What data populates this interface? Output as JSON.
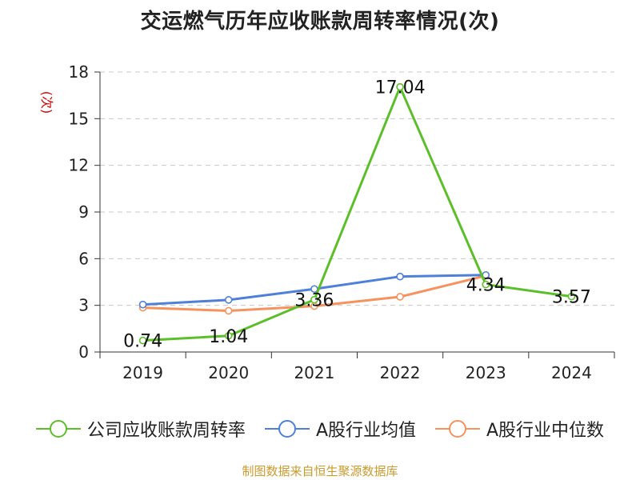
{
  "chart_data": {
    "type": "line",
    "title": "交运燃气历年应收账款周转率情况(次)",
    "ylabel": "(次)",
    "xlabel": "",
    "categories": [
      "2019",
      "2020",
      "2021",
      "2022",
      "2023",
      "2024"
    ],
    "ylim": [
      0,
      18
    ],
    "yticks": [
      0,
      3,
      6,
      9,
      12,
      15,
      18
    ],
    "grid": true,
    "legend_position": "bottom",
    "series": [
      {
        "name": "公司应收账款周转率",
        "color": "#5cbf2a",
        "values": [
          0.74,
          1.04,
          3.36,
          17.04,
          4.34,
          3.57
        ],
        "data_labels": [
          "0.74",
          "1.04",
          "3.36",
          "17.04",
          "4.34",
          "3.57"
        ]
      },
      {
        "name": "A股行业均值",
        "color": "#4e7fd9",
        "values": [
          3.05,
          3.35,
          4.05,
          4.85,
          4.95,
          null
        ]
      },
      {
        "name": "A股行业中位数",
        "color": "#f5925e",
        "values": [
          2.85,
          2.65,
          2.95,
          3.55,
          4.9,
          null
        ]
      }
    ]
  },
  "footer": {
    "source": "制图数据来自恒生聚源数据库"
  }
}
